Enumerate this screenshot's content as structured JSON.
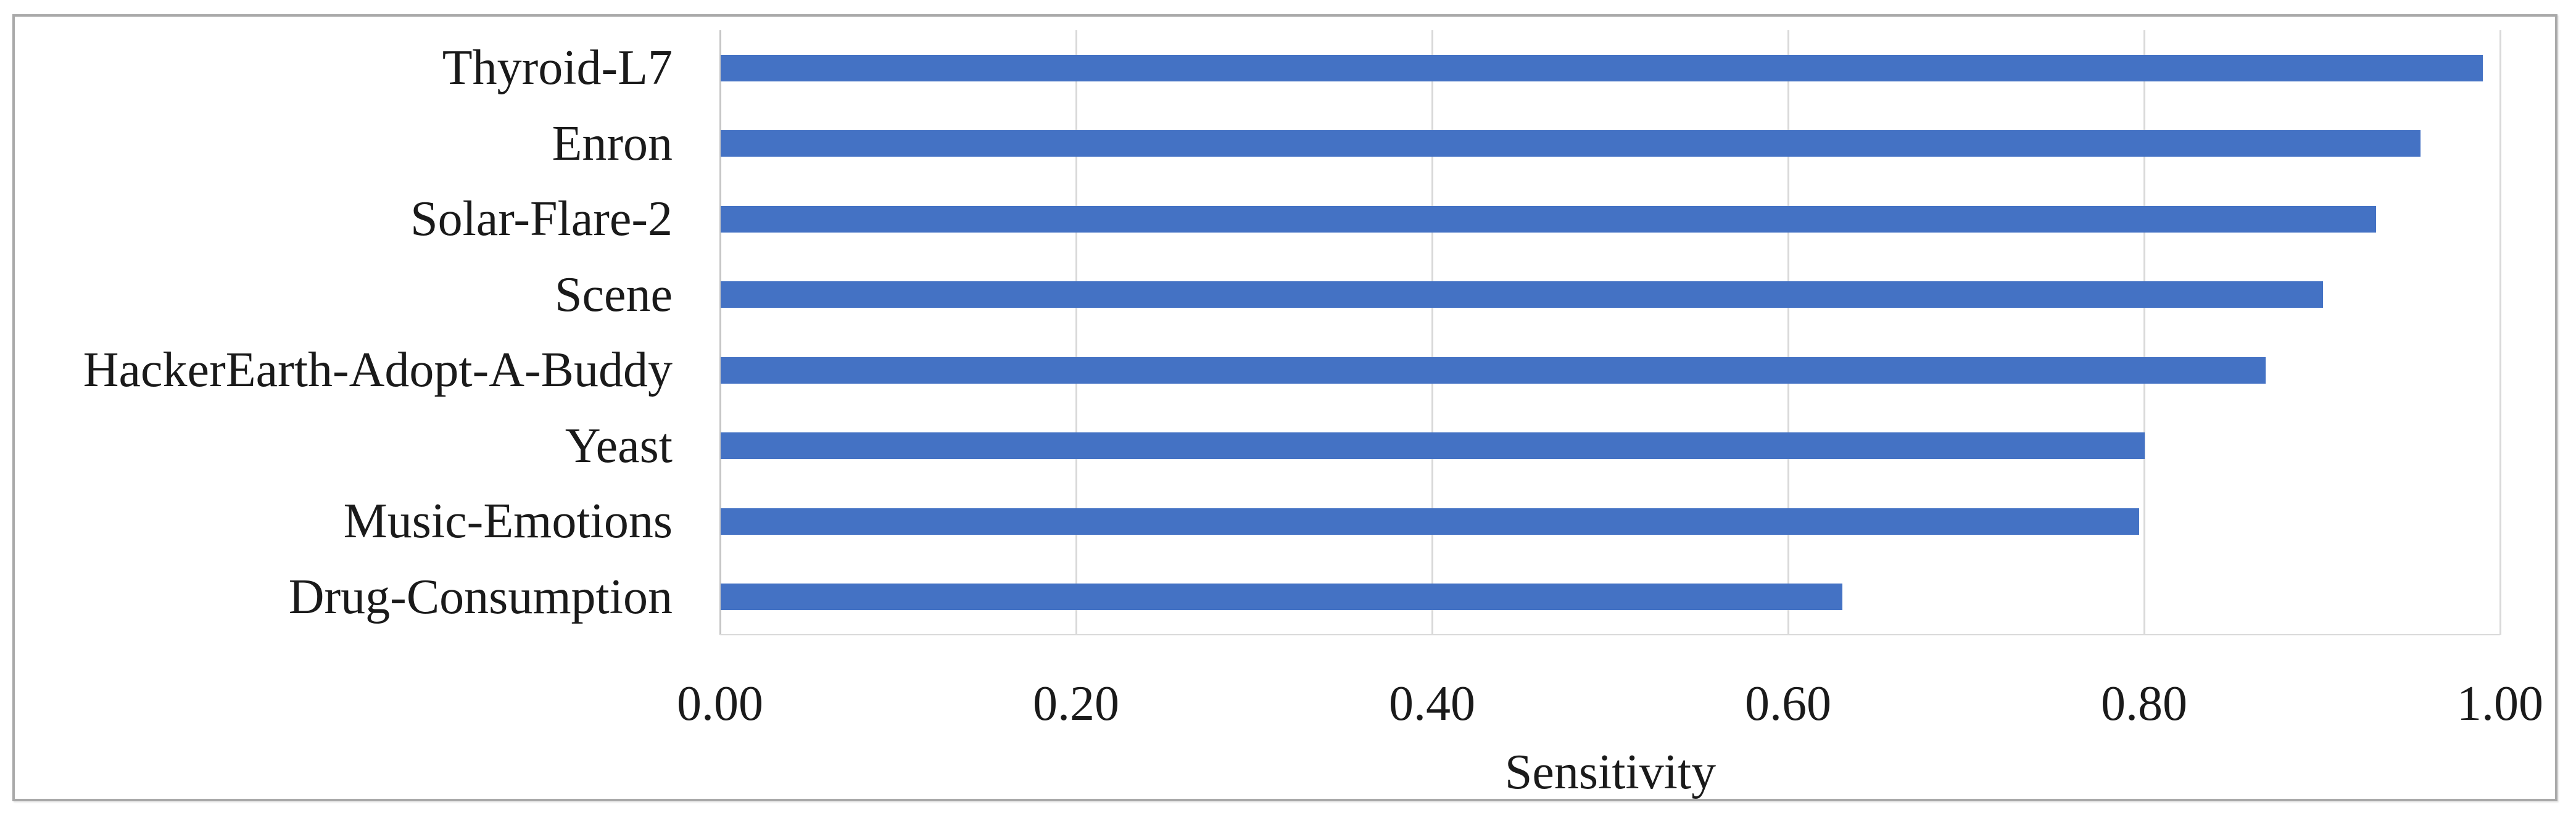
{
  "chart_data": {
    "type": "bar",
    "orientation": "horizontal",
    "title": "",
    "xlabel": "Sensitivity",
    "ylabel": "",
    "categories": [
      "Thyroid-L7",
      "Enron",
      "Solar-Flare-2",
      "Scene",
      "HackerEarth-Adopt-A-Buddy",
      "Yeast",
      "Music-Emotions",
      "Drug-Consumption"
    ],
    "values": [
      0.99,
      0.955,
      0.93,
      0.9,
      0.868,
      0.8,
      0.797,
      0.63
    ],
    "xlim": [
      0,
      1
    ],
    "xtick_labels": [
      "0.00",
      "0.20",
      "0.40",
      "0.60",
      "0.80",
      "1.00"
    ],
    "xtick_values": [
      0,
      0.2,
      0.4,
      0.6,
      0.8,
      1.0
    ],
    "grid": "vertical",
    "legend": "none",
    "bar_color": "#4472C4",
    "gridline_color": "#d9d9d9",
    "axis_line_color": "#c6c6c6",
    "text_color": "#1a1a1a",
    "frame_border_color": "#a9a9a9"
  }
}
